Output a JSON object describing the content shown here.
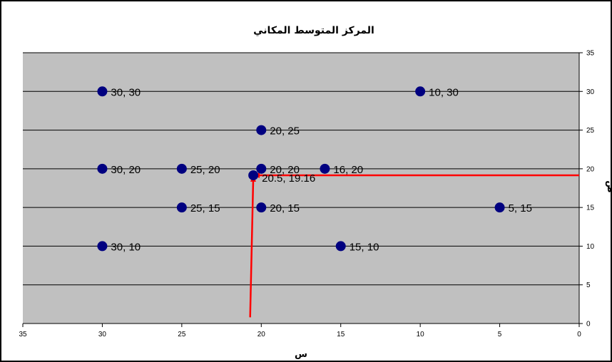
{
  "chart_data": {
    "type": "scatter",
    "title": "المركز المتوسط المكاني",
    "xlabel": "س",
    "ylabel": "ص",
    "xlim": [
      35,
      0
    ],
    "x_reversed": true,
    "ylim": [
      0,
      35
    ],
    "x_ticks": [
      35,
      30,
      25,
      20,
      15,
      10,
      5,
      0
    ],
    "y_ticks": [
      0,
      5,
      10,
      15,
      20,
      25,
      30,
      35
    ],
    "y_axis_side": "right",
    "grid": "horizontal",
    "plot_background": "#c0c0c0",
    "marker_color": "#000080",
    "series": [
      {
        "points": [
          {
            "x": 30,
            "y": 30,
            "label": "30, 30"
          },
          {
            "x": 10,
            "y": 30,
            "label": "10, 30"
          },
          {
            "x": 20,
            "y": 25,
            "label": "20, 25"
          },
          {
            "x": 30,
            "y": 20,
            "label": "30, 20"
          },
          {
            "x": 25,
            "y": 20,
            "label": "25, 20"
          },
          {
            "x": 20,
            "y": 20,
            "label": "20, 20"
          },
          {
            "x": 16,
            "y": 20,
            "label": "16, 20"
          },
          {
            "x": 20.5,
            "y": 19.16,
            "label": "20.5, 19.16"
          },
          {
            "x": 25,
            "y": 15,
            "label": "25, 15"
          },
          {
            "x": 20,
            "y": 15,
            "label": "20, 15"
          },
          {
            "x": 5,
            "y": 15,
            "label": "5, 15"
          },
          {
            "x": 30,
            "y": 10,
            "label": "30, 10"
          },
          {
            "x": 15,
            "y": 10,
            "label": "15, 10"
          }
        ]
      }
    ],
    "annotations": [
      {
        "type": "arrow",
        "color": "#ff0000",
        "from": {
          "x": 20.7,
          "y": 0.8
        },
        "to": {
          "x": 20.5,
          "y": 19.16
        }
      },
      {
        "type": "arrow",
        "color": "#ff0000",
        "from": {
          "x": 0,
          "y": 19.16
        },
        "to": {
          "x": 20.5,
          "y": 19.16
        }
      }
    ]
  }
}
